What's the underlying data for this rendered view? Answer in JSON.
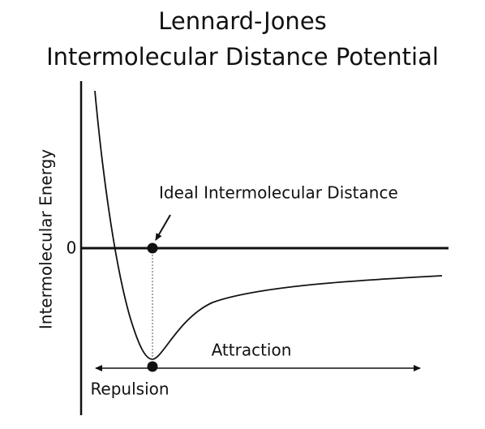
{
  "title": {
    "line1": "Lennard-Jones",
    "line2": "Intermolecular Distance Potential"
  },
  "axis": {
    "y_label": "Intermolecular Energy",
    "zero_label": "0"
  },
  "annotations": {
    "ideal_distance": "Ideal Intermolecular Distance",
    "attraction": "Attraction",
    "repulsion": "Repulsion"
  }
}
